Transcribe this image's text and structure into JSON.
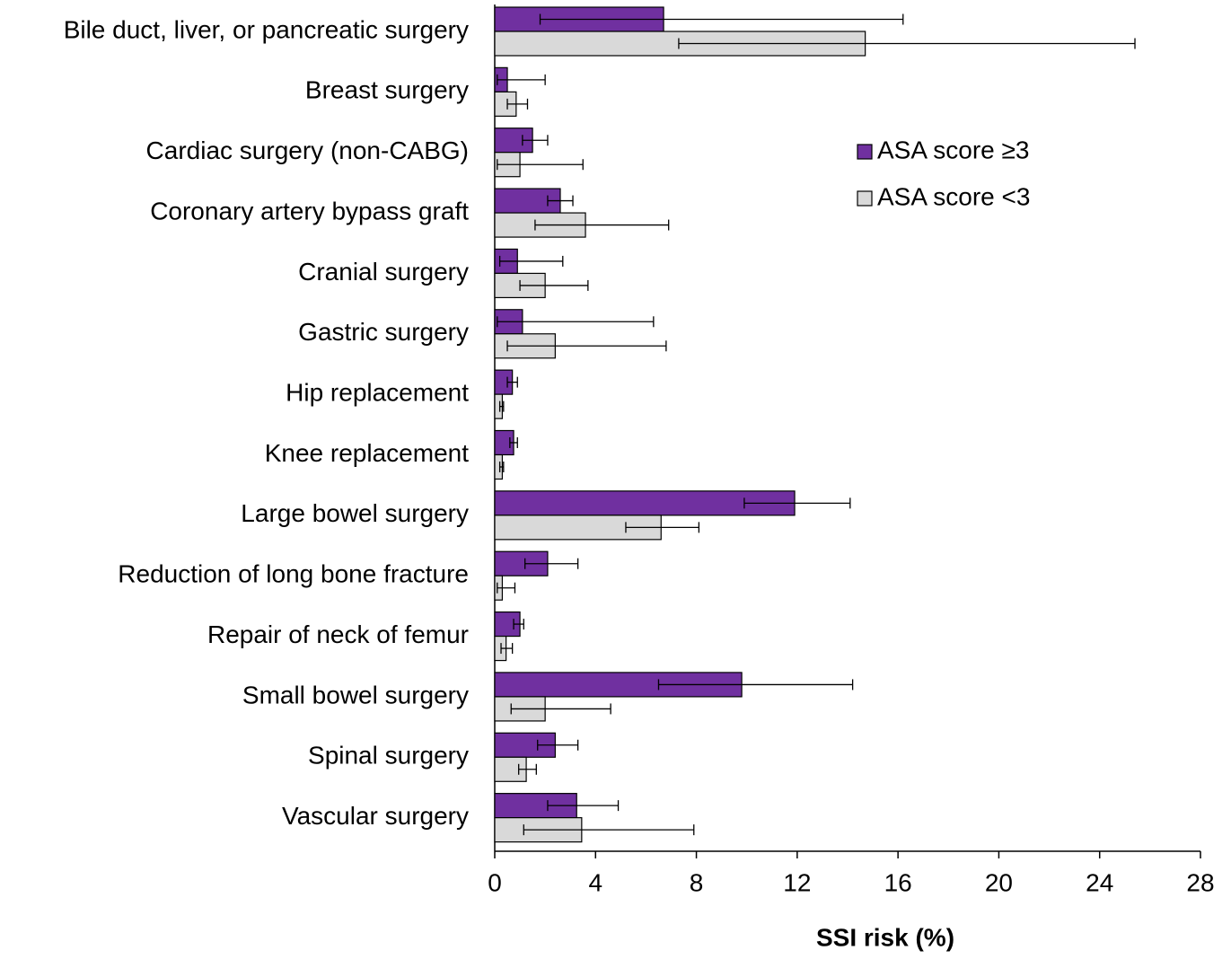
{
  "chart_data": {
    "type": "bar",
    "orientation": "horizontal",
    "xlabel": "SSI risk (%)",
    "categories": [
      "Bile duct, liver, or pancreatic surgery",
      "Breast surgery",
      "Cardiac surgery (non-CABG)",
      "Coronary artery bypass graft",
      "Cranial surgery",
      "Gastric surgery",
      "Hip replacement",
      "Knee replacement",
      "Large bowel surgery",
      "Reduction of long bone fracture",
      "Repair of neck of femur",
      "Small bowel surgery",
      "Spinal surgery",
      "Vascular surgery"
    ],
    "series": [
      {
        "name": "ASA score ≥3",
        "color": "#7030a0",
        "values": [
          6.7,
          0.5,
          1.5,
          2.6,
          0.9,
          1.1,
          0.7,
          0.75,
          11.9,
          2.1,
          1.0,
          9.8,
          2.4,
          3.25
        ],
        "error_low": [
          1.8,
          0.1,
          1.1,
          2.1,
          0.2,
          0.1,
          0.5,
          0.6,
          9.9,
          1.2,
          0.75,
          6.5,
          1.7,
          2.1
        ],
        "error_high": [
          16.2,
          2.0,
          2.1,
          3.1,
          2.7,
          6.3,
          0.9,
          0.9,
          14.1,
          3.3,
          1.15,
          14.2,
          3.3,
          4.9
        ]
      },
      {
        "name": "ASA score <3",
        "color": "#d9d9d9",
        "values": [
          14.7,
          0.85,
          1.0,
          3.6,
          2.0,
          2.4,
          0.3,
          0.3,
          6.6,
          0.3,
          0.45,
          2.0,
          1.25,
          3.45
        ],
        "error_low": [
          7.3,
          0.5,
          0.1,
          1.6,
          1.0,
          0.5,
          0.2,
          0.2,
          5.2,
          0.1,
          0.25,
          0.65,
          0.95,
          1.15
        ],
        "error_high": [
          25.4,
          1.3,
          3.5,
          6.9,
          3.7,
          6.8,
          0.35,
          0.35,
          8.1,
          0.8,
          0.7,
          4.6,
          1.65,
          7.9
        ]
      }
    ],
    "xlim": [
      0,
      28
    ],
    "xticks": [
      0,
      4,
      8,
      12,
      16,
      20,
      24,
      28
    ],
    "grid": false,
    "legend": "upper right"
  }
}
